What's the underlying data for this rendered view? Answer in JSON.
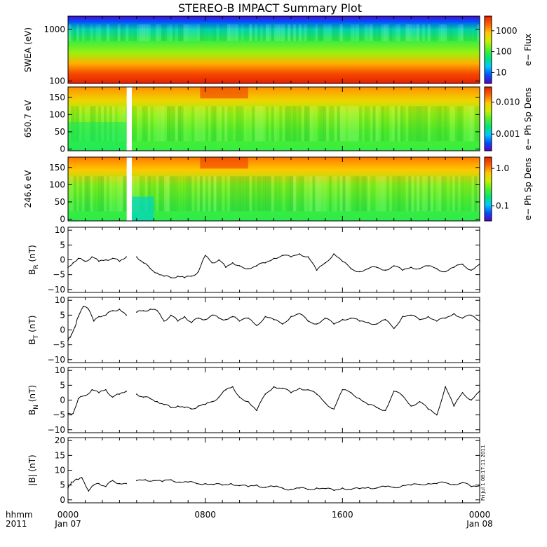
{
  "title": "STEREO-B IMPACT Summary Plot",
  "footer": {
    "corner_top": "hhmm",
    "corner_bottom": "2011",
    "stamp": "Fri Jul 1 08:17:11 2011"
  },
  "colors": {
    "colormap": [
      "#5a00c8",
      "#0050ff",
      "#00c8ff",
      "#00e678",
      "#50f028",
      "#c8f000",
      "#ffc800",
      "#ff6400",
      "#e61e00"
    ],
    "line": "#000000",
    "axes": "#000000"
  },
  "x_axis": {
    "ticks": [
      {
        "x": 0,
        "label": "0000",
        "sub": "Jan 07"
      },
      {
        "x": 8,
        "label": "0800",
        "sub": ""
      },
      {
        "x": 16,
        "label": "1600",
        "sub": ""
      },
      {
        "x": 24,
        "label": "0000",
        "sub": "Jan 08"
      }
    ]
  },
  "chart_data": [
    {
      "type": "heatmap",
      "ylabel": "SWEA (eV)",
      "ylog": true,
      "ylim": [
        90,
        1800
      ],
      "y_ticks": [
        {
          "v": 1000,
          "label": "1000"
        },
        {
          "v": 100,
          "label": "100"
        }
      ],
      "colorbar": {
        "label": "e− Flux",
        "log": true,
        "range": [
          3,
          5000
        ],
        "ticks": [
          {
            "v": 1000,
            "label": "1000"
          },
          {
            "v": 100,
            "label": "100"
          },
          {
            "v": 10,
            "label": "10"
          }
        ]
      },
      "description_rows_log_energy": [
        1.96,
        2.3,
        2.6,
        2.9,
        3.1,
        3.25
      ],
      "row_values": [
        5000,
        1500,
        300,
        60,
        8,
        3
      ],
      "gaps": []
    },
    {
      "type": "heatmap",
      "ylabel": "650.7 eV",
      "ylim": [
        -5,
        180
      ],
      "y_ticks": [
        {
          "v": 150,
          "label": "150"
        },
        {
          "v": 100,
          "label": "100"
        },
        {
          "v": 50,
          "label": "50"
        },
        {
          "v": 0,
          "label": "0"
        }
      ],
      "colorbar": {
        "label": "e− Ph Sp Dens",
        "log": true,
        "range": [
          0.0003,
          0.03
        ],
        "ticks": [
          {
            "v": 0.01,
            "label": "0.010"
          },
          {
            "v": 0.001,
            "label": "0.001"
          }
        ]
      },
      "gaps": [
        [
          3.42,
          3.72
        ]
      ]
    },
    {
      "type": "heatmap",
      "ylabel": "246.6 eV",
      "ylim": [
        -5,
        180
      ],
      "y_ticks": [
        {
          "v": 150,
          "label": "150"
        },
        {
          "v": 100,
          "label": "100"
        },
        {
          "v": 50,
          "label": "50"
        },
        {
          "v": 0,
          "label": "0"
        }
      ],
      "colorbar": {
        "label": "e− Ph Sp Dens",
        "log": true,
        "range": [
          0.04,
          2.0
        ],
        "ticks": [
          {
            "v": 1.0,
            "label": "1.0"
          },
          {
            "v": 0.1,
            "label": "0.1"
          }
        ]
      },
      "gaps": [
        [
          3.42,
          3.72
        ]
      ]
    },
    {
      "type": "line",
      "ylabel": "B_R (nT)",
      "ylabel_main": "B",
      "ylabel_sub": "R",
      "ylabel_unit": " (nT)",
      "ylim": [
        -11,
        11
      ],
      "y_ticks": [
        {
          "v": 10,
          "label": "10"
        },
        {
          "v": 5,
          "label": "5"
        },
        {
          "v": 0,
          "label": "0"
        },
        {
          "v": -5,
          "label": "−5"
        },
        {
          "v": -10,
          "label": "−10"
        }
      ],
      "x": [
        0,
        0.3,
        0.6,
        1.0,
        1.4,
        1.8,
        2.2,
        2.6,
        3.0,
        3.4,
        3.7,
        4.0,
        4.4,
        4.8,
        5.2,
        5.6,
        6.0,
        6.4,
        6.8,
        7.2,
        7.6,
        8.0,
        8.4,
        8.8,
        9.2,
        9.6,
        10.0,
        10.5,
        11.0,
        11.5,
        12.0,
        12.5,
        13.0,
        13.5,
        14.0,
        14.5,
        15.0,
        15.5,
        16.0,
        16.5,
        17.0,
        17.5,
        18.0,
        18.5,
        19.0,
        19.5,
        20.0,
        20.5,
        21.0,
        21.5,
        22.0,
        22.5,
        23.0,
        23.5,
        24.0
      ],
      "y": [
        -2.5,
        -1.0,
        0.5,
        -0.5,
        1.0,
        -0.5,
        0.0,
        0.5,
        -0.5,
        1.0,
        null,
        1.0,
        -1.0,
        -3.0,
        -4.5,
        -5.5,
        -6.0,
        -5.5,
        -6.0,
        -5.5,
        -4.0,
        1.5,
        -1.0,
        0.0,
        -2.5,
        -1.0,
        -2.0,
        -3.0,
        -2.0,
        -1.0,
        0.5,
        1.5,
        1.0,
        2.0,
        1.0,
        -3.5,
        -1.0,
        2.0,
        -0.5,
        -3.0,
        -4.0,
        -3.0,
        -2.5,
        -3.5,
        -2.0,
        -3.5,
        -2.5,
        -3.0,
        -2.0,
        -3.0,
        -4.0,
        -2.5,
        -1.5,
        -3.5,
        -1.5
      ],
      "gaps": [
        [
          3.42,
          3.72
        ]
      ]
    },
    {
      "type": "line",
      "ylabel": "B_T (nT)",
      "ylabel_main": "B",
      "ylabel_sub": "T",
      "ylabel_unit": " (nT)",
      "ylim": [
        -11,
        11
      ],
      "y_ticks": [
        {
          "v": 10,
          "label": "10"
        },
        {
          "v": 5,
          "label": "5"
        },
        {
          "v": 0,
          "label": "0"
        },
        {
          "v": -5,
          "label": "−5"
        },
        {
          "v": -10,
          "label": "−10"
        }
      ],
      "x": [
        0,
        0.2,
        0.4,
        0.6,
        0.9,
        1.2,
        1.5,
        1.8,
        2.2,
        2.6,
        3.0,
        3.4,
        3.7,
        4.0,
        4.4,
        4.8,
        5.2,
        5.6,
        6.0,
        6.4,
        6.8,
        7.2,
        7.6,
        8.0,
        8.4,
        8.8,
        9.2,
        9.6,
        10.0,
        10.5,
        11.0,
        11.5,
        12.0,
        12.5,
        13.0,
        13.5,
        14.0,
        14.5,
        15.0,
        15.5,
        16.0,
        16.5,
        17.0,
        17.5,
        18.0,
        18.5,
        19.0,
        19.5,
        20.0,
        20.5,
        21.0,
        21.5,
        22.0,
        22.5,
        23.0,
        23.5,
        24.0
      ],
      "y": [
        -3.5,
        -1.5,
        1.0,
        4.5,
        8.0,
        7.0,
        3.0,
        4.5,
        5.0,
        6.5,
        7.0,
        5.0,
        null,
        6.0,
        6.5,
        7.0,
        6.5,
        3.0,
        5.0,
        3.0,
        4.5,
        2.5,
        4.0,
        3.5,
        5.0,
        4.0,
        3.5,
        4.5,
        3.0,
        4.0,
        1.5,
        4.5,
        3.5,
        2.0,
        4.5,
        5.5,
        3.0,
        2.0,
        4.0,
        2.0,
        3.5,
        4.0,
        3.0,
        2.5,
        2.0,
        3.5,
        0.5,
        4.5,
        5.0,
        3.5,
        4.5,
        3.0,
        4.0,
        5.5,
        4.0,
        5.0,
        3.0
      ],
      "gaps": [
        [
          3.42,
          3.72
        ]
      ]
    },
    {
      "type": "line",
      "ylabel": "B_N (nT)",
      "ylabel_main": "B",
      "ylabel_sub": "N",
      "ylabel_unit": " (nT)",
      "ylim": [
        -11,
        11
      ],
      "y_ticks": [
        {
          "v": 10,
          "label": "10"
        },
        {
          "v": 5,
          "label": "5"
        },
        {
          "v": 0,
          "label": "0"
        },
        {
          "v": -5,
          "label": "−5"
        },
        {
          "v": -10,
          "label": "−10"
        }
      ],
      "x": [
        0,
        0.3,
        0.6,
        1.0,
        1.4,
        1.8,
        2.2,
        2.6,
        3.0,
        3.4,
        3.7,
        4.0,
        4.4,
        4.8,
        5.2,
        5.6,
        6.0,
        6.4,
        6.8,
        7.2,
        7.6,
        8.0,
        8.4,
        8.8,
        9.2,
        9.6,
        10.0,
        10.5,
        11.0,
        11.5,
        12.0,
        12.5,
        13.0,
        13.5,
        14.0,
        14.5,
        15.0,
        15.5,
        16.0,
        16.5,
        17.0,
        17.5,
        18.0,
        18.5,
        19.0,
        19.5,
        20.0,
        20.5,
        21.0,
        21.5,
        22.0,
        22.5,
        23.0,
        23.5,
        24.0
      ],
      "y": [
        -4.5,
        -4.5,
        0.5,
        1.5,
        3.5,
        2.5,
        3.5,
        1.0,
        2.0,
        3.0,
        null,
        2.0,
        1.0,
        0.5,
        -0.5,
        -1.5,
        -2.5,
        -2.0,
        -2.5,
        -3.0,
        -2.0,
        -1.5,
        -0.5,
        1.0,
        3.5,
        4.5,
        1.0,
        -0.5,
        -3.5,
        2.0,
        4.5,
        4.0,
        2.5,
        4.0,
        3.5,
        2.0,
        -1.0,
        -3.0,
        3.5,
        2.5,
        0.5,
        -1.5,
        -2.5,
        -3.5,
        3.0,
        1.5,
        -2.0,
        -0.5,
        -3.0,
        -5.0,
        4.5,
        -2.0,
        2.5,
        0.0,
        3.0
      ],
      "gaps": [
        [
          3.42,
          3.72
        ]
      ]
    },
    {
      "type": "line",
      "ylabel": "|B| (nT)",
      "ylim": [
        -1,
        21
      ],
      "y_ticks": [
        {
          "v": 20,
          "label": "20"
        },
        {
          "v": 15,
          "label": "15"
        },
        {
          "v": 10,
          "label": "10"
        },
        {
          "v": 5,
          "label": "5"
        },
        {
          "v": 0,
          "label": "0"
        }
      ],
      "x": [
        0,
        0.2,
        0.5,
        0.8,
        1.2,
        1.5,
        1.8,
        2.2,
        2.6,
        3.0,
        3.4,
        3.7,
        4.0,
        4.5,
        5.0,
        5.5,
        6.0,
        6.5,
        7.0,
        7.5,
        8.0,
        8.5,
        9.0,
        9.5,
        10.0,
        10.5,
        11.0,
        11.5,
        12.0,
        12.5,
        13.0,
        13.5,
        14.0,
        14.5,
        15.0,
        15.5,
        16.0,
        16.5,
        17.0,
        17.5,
        18.0,
        18.5,
        19.0,
        19.5,
        20.0,
        20.5,
        21.0,
        21.5,
        22.0,
        22.5,
        23.0,
        23.5,
        24.0
      ],
      "y": [
        4.0,
        6.0,
        7.0,
        7.5,
        3.0,
        5.0,
        5.5,
        4.5,
        6.5,
        5.5,
        5.5,
        null,
        6.5,
        6.8,
        6.5,
        6.2,
        6.8,
        6.0,
        6.0,
        5.5,
        5.5,
        5.2,
        5.0,
        5.5,
        4.8,
        4.5,
        5.0,
        4.2,
        4.5,
        4.0,
        3.5,
        4.0,
        3.5,
        4.0,
        3.8,
        3.2,
        4.0,
        3.5,
        3.8,
        4.2,
        4.0,
        4.5,
        4.2,
        4.8,
        5.0,
        5.2,
        5.5,
        5.5,
        5.8,
        5.2,
        5.8,
        4.5,
        4.8
      ],
      "gaps": [
        [
          3.42,
          3.72
        ]
      ]
    }
  ]
}
